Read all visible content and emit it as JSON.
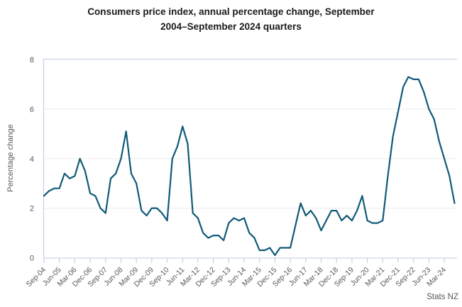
{
  "branding": {
    "source_label": "Stats NZ"
  },
  "colors": {
    "line": "#0f5a78",
    "axis_frame": "#c9d2ea",
    "gridline": "#ececec",
    "label_text": "#595959",
    "title_text": "#1a1a1a",
    "background": "#ffffff"
  },
  "chart_data": {
    "type": "line",
    "title": "Consumers price index, annual percentage change, September 2004–September 2024 quarters",
    "title_lines": [
      "Consumers price index, annual percentage change, September",
      "2004–September 2024 quarters"
    ],
    "xlabel": "",
    "ylabel": "Percentage change",
    "ylim": [
      0,
      8
    ],
    "yticks": [
      0,
      2,
      4,
      6,
      8
    ],
    "gridline_values": [
      2,
      4,
      6
    ],
    "grid": "horizontal",
    "legend_position": "none",
    "xtick_every": 3,
    "source": "Stats NZ",
    "categories": [
      "Sep-04",
      "Dec-04",
      "Mar-05",
      "Jun-05",
      "Sep-05",
      "Dec-05",
      "Mar-06",
      "Jun-06",
      "Sep-06",
      "Dec-06",
      "Mar-07",
      "Jun-07",
      "Sep-07",
      "Dec-07",
      "Mar-08",
      "Jun-08",
      "Sep-08",
      "Dec-08",
      "Mar-09",
      "Jun-09",
      "Sep-09",
      "Dec-09",
      "Mar-10",
      "Jun-10",
      "Sep-10",
      "Dec-10",
      "Mar-11",
      "Jun-11",
      "Sep-11",
      "Dec-11",
      "Mar-12",
      "Jun-12",
      "Sep-12",
      "Dec-12",
      "Mar-13",
      "Jun-13",
      "Sep-13",
      "Dec-13",
      "Mar-14",
      "Jun-14",
      "Sep-14",
      "Dec-14",
      "Mar-15",
      "Jun-15",
      "Sep-15",
      "Dec-15",
      "Mar-16",
      "Jun-16",
      "Sep-16",
      "Dec-16",
      "Mar-17",
      "Jun-17",
      "Sep-17",
      "Dec-17",
      "Mar-18",
      "Jun-18",
      "Sep-18",
      "Dec-18",
      "Mar-19",
      "Jun-19",
      "Sep-19",
      "Dec-19",
      "Mar-20",
      "Jun-20",
      "Sep-20",
      "Dec-20",
      "Mar-21",
      "Jun-21",
      "Sep-21",
      "Dec-21",
      "Mar-22",
      "Jun-22",
      "Sep-22",
      "Dec-22",
      "Mar-23",
      "Jun-23",
      "Sep-23",
      "Dec-23",
      "Mar-24",
      "Jun-24",
      "Sep-24"
    ],
    "series": [
      {
        "name": "CPI annual percentage change",
        "color": "#0f5a78",
        "values": [
          2.5,
          2.7,
          2.8,
          2.8,
          3.4,
          3.2,
          3.3,
          4.0,
          3.5,
          2.6,
          2.5,
          2.0,
          1.8,
          3.2,
          3.4,
          4.0,
          5.1,
          3.4,
          3.0,
          1.9,
          1.7,
          2.0,
          2.0,
          1.8,
          1.5,
          4.0,
          4.5,
          5.3,
          4.6,
          1.8,
          1.6,
          1.0,
          0.8,
          0.9,
          0.9,
          0.7,
          1.4,
          1.6,
          1.5,
          1.6,
          1.0,
          0.8,
          0.3,
          0.3,
          0.4,
          0.1,
          0.4,
          0.4,
          0.4,
          1.3,
          2.2,
          1.7,
          1.9,
          1.6,
          1.1,
          1.5,
          1.9,
          1.9,
          1.5,
          1.7,
          1.5,
          1.9,
          2.5,
          1.5,
          1.4,
          1.4,
          1.5,
          3.3,
          4.9,
          5.9,
          6.9,
          7.3,
          7.2,
          7.2,
          6.7,
          6.0,
          5.6,
          4.7,
          4.0,
          3.3,
          2.2
        ]
      }
    ]
  }
}
